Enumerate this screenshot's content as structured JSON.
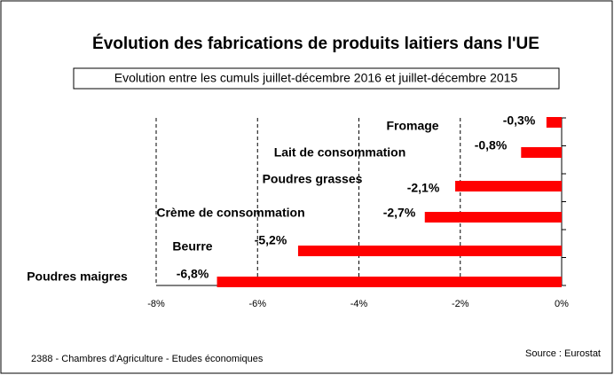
{
  "chart_data": {
    "type": "bar",
    "orientation": "horizontal",
    "title": "Évolution des fabrications de produits laitiers dans l'UE",
    "subtitle": "Evolution entre les cumuls juillet-décembre 2016 et juillet-décembre 2015",
    "categories": [
      "Fromage",
      "Lait de consommation",
      "Poudres grasses",
      "Crème de consommation",
      "Beurre",
      "Poudres maigres"
    ],
    "values": [
      -0.3,
      -0.8,
      -2.1,
      -2.7,
      -5.2,
      -6.8
    ],
    "value_labels": [
      "-0,3%",
      "-0,8%",
      "-2,1%",
      "-2,7%",
      "-5,2%",
      "-6,8%"
    ],
    "color": "#ff0000",
    "xlim": [
      -8,
      0
    ],
    "xticks": [
      {
        "value": -8,
        "label": "-8%"
      },
      {
        "value": -6,
        "label": "-6%"
      },
      {
        "value": -4,
        "label": "-4%"
      },
      {
        "value": -2,
        "label": "-2%"
      },
      {
        "value": 0,
        "label": "0%"
      }
    ],
    "grid": true,
    "footer_left": "2388 - Chambres d'Agriculture - Etudes économiques",
    "footer_right": "Source : Eurostat"
  }
}
